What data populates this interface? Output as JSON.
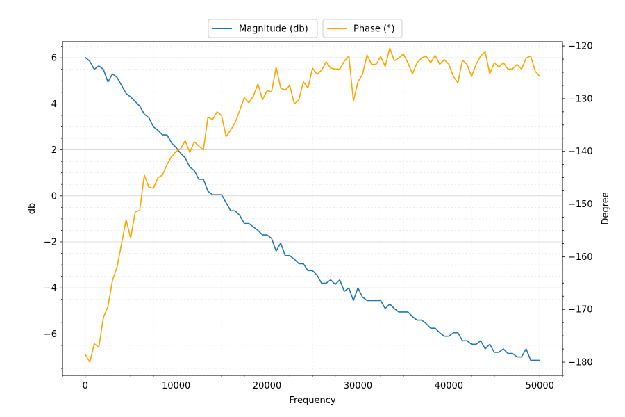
{
  "chart_data": {
    "type": "line",
    "xlabel": "Frequency",
    "ylabel": "db",
    "y2label": "Degree",
    "xlim": [
      -2500,
      52500
    ],
    "ylim": [
      -7.8,
      6.7
    ],
    "y2lim": [
      -182.5,
      -119.2
    ],
    "x_ticks": [
      0,
      10000,
      20000,
      30000,
      40000,
      50000
    ],
    "x_tick_labels": [
      "0",
      "10000",
      "20000",
      "30000",
      "40000",
      "50000"
    ],
    "y_ticks": [
      -6,
      -4,
      -2,
      0,
      2,
      4,
      6
    ],
    "y_tick_labels": [
      "−6",
      "−4",
      "−2",
      "0",
      "2",
      "4",
      "6"
    ],
    "y2_ticks": [
      -180,
      -170,
      -160,
      -150,
      -140,
      -130,
      -120
    ],
    "y2_tick_labels": [
      "−180",
      "−170",
      "−160",
      "−150",
      "−140",
      "−130",
      "−120"
    ],
    "grid": "major and minor",
    "legend": "top-center",
    "series": [
      {
        "name": "Magnitude (db)",
        "axis": "left",
        "color": "#1f77b4",
        "x": [
          0,
          500,
          1000,
          1500,
          2000,
          2500,
          3000,
          3500,
          4000,
          4500,
          5000,
          5500,
          6000,
          6500,
          7000,
          7500,
          8000,
          8500,
          9000,
          9500,
          10000,
          10500,
          11000,
          11500,
          12000,
          12500,
          13000,
          13500,
          14000,
          14500,
          15000,
          15500,
          16000,
          16500,
          17000,
          17500,
          18000,
          18500,
          19000,
          19500,
          20000,
          20500,
          21000,
          21500,
          22000,
          22500,
          23000,
          23500,
          24000,
          24500,
          25000,
          25500,
          26000,
          26500,
          27000,
          27500,
          28000,
          28500,
          29000,
          29500,
          30000,
          30500,
          31000,
          31500,
          32000,
          32500,
          33000,
          33500,
          34000,
          34500,
          35000,
          35500,
          36000,
          36500,
          37000,
          37500,
          38000,
          38500,
          39000,
          39500,
          40000,
          40500,
          41000,
          41500,
          42000,
          42500,
          43000,
          43500,
          44000,
          44500,
          45000,
          45500,
          46000,
          46500,
          47000,
          47500,
          48000,
          48500,
          49000,
          49500,
          50000
        ],
        "values": [
          6.02,
          5.85,
          5.5,
          5.65,
          5.5,
          4.95,
          5.3,
          5.15,
          4.8,
          4.45,
          4.3,
          4.1,
          3.9,
          3.55,
          3.4,
          3.0,
          2.85,
          2.65,
          2.65,
          2.3,
          2.1,
          1.85,
          1.65,
          1.25,
          1.1,
          0.72,
          0.72,
          0.2,
          0.05,
          0.05,
          0.05,
          -0.3,
          -0.65,
          -0.65,
          -0.85,
          -1.2,
          -1.2,
          -1.35,
          -1.5,
          -1.7,
          -1.7,
          -1.85,
          -2.4,
          -2.05,
          -2.6,
          -2.6,
          -2.75,
          -2.95,
          -2.95,
          -3.25,
          -3.25,
          -3.45,
          -3.8,
          -3.8,
          -3.65,
          -3.85,
          -3.65,
          -4.15,
          -4.0,
          -4.55,
          -4.0,
          -4.4,
          -4.55,
          -4.55,
          -4.55,
          -4.55,
          -4.9,
          -4.7,
          -4.9,
          -5.05,
          -5.05,
          -5.05,
          -5.25,
          -5.4,
          -5.4,
          -5.55,
          -5.75,
          -5.75,
          -5.95,
          -6.1,
          -6.1,
          -5.95,
          -5.95,
          -6.3,
          -6.3,
          -6.45,
          -6.45,
          -6.3,
          -6.65,
          -6.45,
          -6.8,
          -6.8,
          -6.65,
          -6.85,
          -6.85,
          -7.0,
          -7.0,
          -6.65,
          -7.15,
          -7.15,
          -7.15
        ]
      },
      {
        "name": "Phase (°)",
        "axis": "right",
        "color": "#ffa500",
        "x": [
          0,
          500,
          1000,
          1500,
          2000,
          2500,
          3000,
          3500,
          4000,
          4500,
          5000,
          5500,
          6000,
          6500,
          7000,
          7500,
          8000,
          8500,
          9000,
          9500,
          10000,
          10500,
          11000,
          11500,
          12000,
          12500,
          13000,
          13500,
          14000,
          14500,
          15000,
          15500,
          16000,
          16500,
          17000,
          17500,
          18000,
          18500,
          19000,
          19500,
          20000,
          20500,
          21000,
          21500,
          22000,
          22500,
          23000,
          23500,
          24000,
          24500,
          25000,
          25500,
          26000,
          26500,
          27000,
          27500,
          28000,
          28500,
          29000,
          29500,
          30000,
          30500,
          31000,
          31500,
          32000,
          32500,
          33000,
          33500,
          34000,
          34500,
          35000,
          35500,
          36000,
          36500,
          37000,
          37500,
          38000,
          38500,
          39000,
          39500,
          40000,
          40500,
          41000,
          41500,
          42000,
          42500,
          43000,
          43500,
          44000,
          44500,
          45000,
          45500,
          46000,
          46500,
          47000,
          47500,
          48000,
          48500,
          49000,
          49500,
          50000
        ],
        "values": [
          -178.5,
          -180.0,
          -176.5,
          -177.2,
          -171.5,
          -169.5,
          -164.5,
          -162.0,
          -157.5,
          -153.0,
          -156.5,
          -151.5,
          -151.2,
          -144.5,
          -146.8,
          -147.0,
          -145.0,
          -144.5,
          -142.5,
          -141.0,
          -140.0,
          -139.5,
          -138.0,
          -140.2,
          -138.2,
          -139.0,
          -139.7,
          -133.5,
          -134.0,
          -132.5,
          -133.2,
          -137.2,
          -136.0,
          -134.5,
          -132.2,
          -129.8,
          -130.8,
          -129.5,
          -127.2,
          -130.2,
          -128.5,
          -128.7,
          -124.0,
          -128.0,
          -128.4,
          -127.5,
          -131.0,
          -130.2,
          -126.8,
          -128.0,
          -124.2,
          -125.4,
          -124.6,
          -123.0,
          -124.2,
          -124.4,
          -124.4,
          -122.9,
          -121.9,
          -130.5,
          -126.8,
          -125.4,
          -121.7,
          -123.5,
          -123.5,
          -122.0,
          -123.9,
          -120.4,
          -122.8,
          -122.3,
          -121.5,
          -123.2,
          -125.3,
          -123.2,
          -122.3,
          -121.9,
          -123.2,
          -121.8,
          -123.5,
          -122.6,
          -123.5,
          -125.8,
          -127.0,
          -122.7,
          -123.5,
          -125.8,
          -123.5,
          -121.9,
          -121.1,
          -125.3,
          -123.2,
          -124.0,
          -123.2,
          -124.4,
          -124.4,
          -123.5,
          -124.4,
          -122.3,
          -121.9,
          -124.8,
          -125.8
        ]
      }
    ]
  }
}
